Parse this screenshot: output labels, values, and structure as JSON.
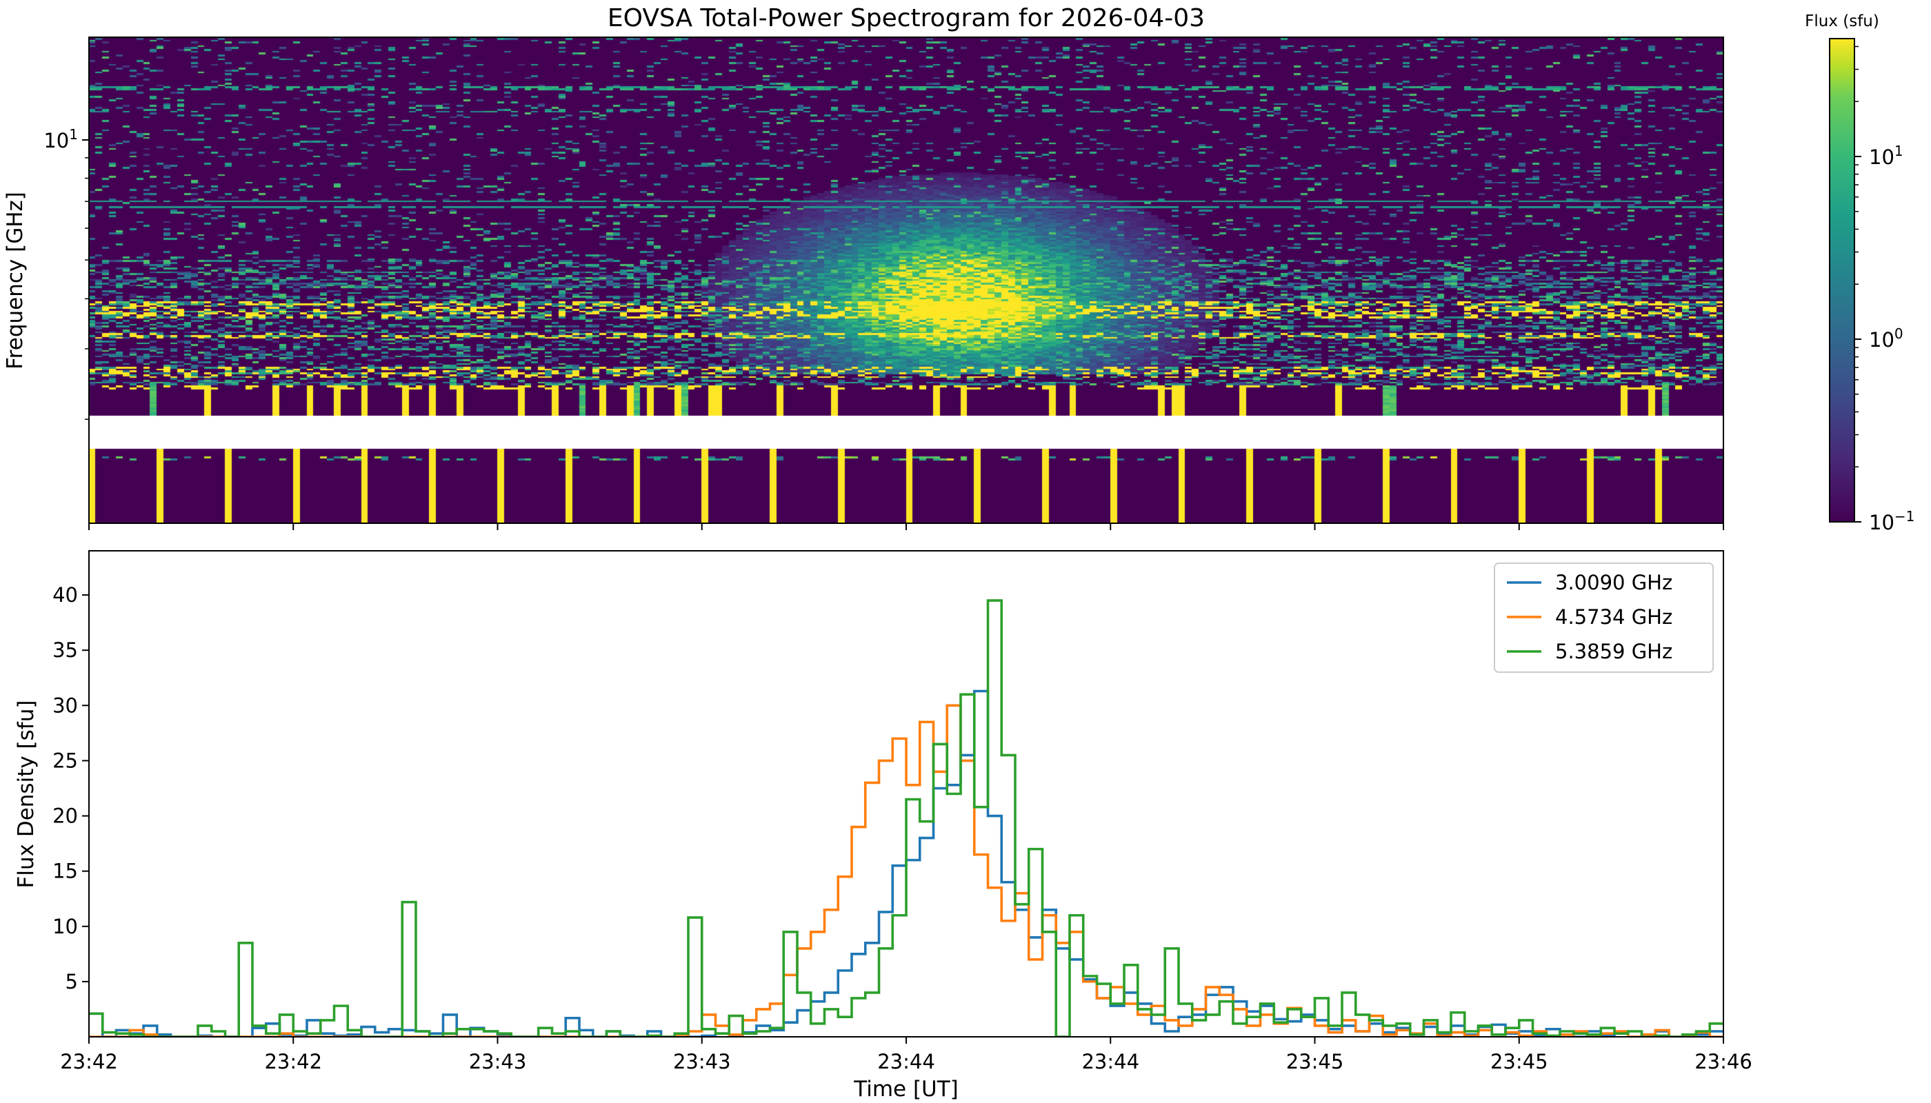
{
  "chart_data": [
    {
      "type": "heatmap",
      "title": "EOVSA Total-Power Spectrogram for 2026-04-03",
      "ylabel": "Frequency [GHz]",
      "yscale": "log",
      "ylim": [
        1.1,
        18
      ],
      "yticks": [
        {
          "base": "10",
          "exp": "1",
          "value": 10
        }
      ],
      "xlim_seconds": [
        0,
        240
      ],
      "missing_band_ghz": [
        1.7,
        2.06
      ],
      "flare_peak_seconds": 128,
      "flare_band_ghz": [
        2.6,
        9.5
      ],
      "colorbar": {
        "label": "Flux (sfu)",
        "scale": "log",
        "range": [
          0.1,
          44
        ],
        "ticks": [
          {
            "base": "10",
            "exp": "1",
            "value": 10
          },
          {
            "base": "10",
            "exp": "0",
            "value": 1
          },
          {
            "base": "10",
            "exp": "−1",
            "value": 0.1
          }
        ],
        "colormap": "viridis"
      }
    },
    {
      "type": "line",
      "style": "step",
      "xlabel": "Time [UT]",
      "ylabel": "Flux Density [sfu]",
      "xlim_seconds": [
        0,
        240
      ],
      "bin_seconds": 2,
      "ylim": [
        0,
        44
      ],
      "yticks": [
        5,
        10,
        15,
        20,
        25,
        30,
        35,
        40
      ],
      "xtick_labels": [
        "23:42",
        "23:42",
        "23:43",
        "23:43",
        "23:44",
        "23:44",
        "23:45",
        "23:45",
        "23:46"
      ],
      "legend": "top-right",
      "series": [
        {
          "name": "3.0090 GHz",
          "color": "#1f77b4",
          "values": [
            2.1,
            0,
            0.6,
            0.3,
            1.0,
            0.2,
            0,
            0,
            0.1,
            0,
            0,
            0,
            0.8,
            1.2,
            0.2,
            0.1,
            1.5,
            0.3,
            0.1,
            0.2,
            0.9,
            0.4,
            0.7,
            0.6,
            0.5,
            0.3,
            2.0,
            0,
            0.8,
            0.5,
            0.1,
            0,
            0,
            0,
            0,
            1.7,
            0.6,
            0,
            0.5,
            0.1,
            0,
            0.5,
            0,
            0.2,
            0,
            0.1,
            0.3,
            0,
            0.4,
            1.0,
            0.6,
            1.3,
            2.4,
            3.2,
            4.0,
            6.0,
            7.5,
            8.5,
            11.3,
            15.5,
            16.0,
            18.0,
            22.5,
            22.8,
            25.5,
            31.3,
            20.0,
            14.0,
            11.5,
            9.0,
            11.5,
            8.0,
            7.0,
            5.2,
            3.5,
            2.8,
            4.0,
            3.0,
            1.2,
            0.5,
            1.8,
            2.0,
            3.8,
            4.5,
            3.2,
            2.3,
            2.8,
            1.6,
            1.4,
            2.0,
            1.5,
            0.7,
            1.0,
            0.5,
            1.2,
            0.4,
            0.8,
            0.2,
            0.9,
            0.3,
            1.0,
            0.2,
            0.9,
            1.1,
            0.3,
            0.5,
            0.1,
            0.7,
            0.2,
            0,
            0.5,
            0.1,
            0.3,
            0,
            0.2,
            0.5,
            0,
            0.1,
            0.2,
            0.5
          ]
        },
        {
          "name": "4.5734 GHz",
          "color": "#ff7f0e",
          "values": [
            0,
            0,
            0,
            0.6,
            0.2,
            0,
            0,
            0,
            0,
            0,
            0,
            0,
            0,
            0,
            0.3,
            0,
            0,
            0,
            0,
            0,
            0,
            0,
            0,
            0,
            0,
            0,
            0,
            0,
            0,
            0,
            0,
            0,
            0,
            0,
            0,
            0,
            0,
            0,
            0,
            0,
            0,
            0,
            0,
            0.2,
            0.5,
            2.0,
            1.0,
            0.2,
            1.5,
            2.5,
            3.0,
            5.6,
            8.0,
            9.5,
            11.5,
            14.5,
            19.0,
            23.0,
            25.0,
            27.0,
            22.8,
            28.5,
            24.0,
            30.0,
            25.0,
            16.5,
            13.5,
            10.5,
            13.0,
            7.0,
            11.0,
            8.5,
            9.5,
            5.0,
            3.5,
            4.5,
            3.0,
            2.0,
            2.8,
            1.5,
            1.0,
            2.5,
            4.5,
            3.8,
            2.5,
            1.0,
            2.0,
            1.2,
            2.6,
            1.8,
            1.0,
            0.4,
            1.5,
            0.5,
            1.9,
            0.2,
            0.6,
            0.3,
            1.2,
            0.1,
            0.4,
            0.1,
            0.6,
            0.2,
            0.4,
            0.1,
            0.5,
            0,
            0.2,
            0.5,
            0.1,
            0.3,
            0.5,
            0,
            0.2,
            0.6,
            0,
            0.1,
            0.4,
            0
          ]
        },
        {
          "name": "5.3859 GHz",
          "color": "#2ca02c",
          "values": [
            2.1,
            0.4,
            0.3,
            0.2,
            0,
            0,
            0,
            0,
            1.0,
            0.5,
            0,
            8.5,
            1.0,
            0.3,
            2.0,
            0.5,
            0.3,
            1.5,
            2.8,
            0.6,
            0,
            0,
            0,
            12.2,
            0.5,
            0,
            0.3,
            0.7,
            0.7,
            0.5,
            0.3,
            0,
            0,
            0.8,
            0.3,
            0.5,
            0,
            0,
            0.5,
            0,
            0,
            0.1,
            0,
            0.3,
            10.8,
            0.7,
            0.3,
            1.9,
            0.3,
            0.5,
            0.8,
            9.5,
            4.0,
            1.2,
            2.5,
            1.8,
            3.5,
            4.0,
            8.0,
            11.0,
            21.5,
            19.5,
            26.5,
            22.0,
            31.0,
            20.8,
            39.5,
            25.5,
            12.0,
            17.0,
            9.5,
            0,
            11.0,
            5.5,
            4.8,
            3.0,
            6.5,
            2.5,
            2.0,
            8.0,
            3.0,
            1.5,
            2.0,
            3.2,
            1.2,
            1.8,
            3.0,
            1.3,
            2.5,
            1.8,
            3.5,
            1.0,
            4.0,
            2.0,
            1.5,
            1.0,
            1.2,
            0.2,
            1.5,
            0.4,
            2.2,
            0.5,
            1.0,
            0.2,
            0.8,
            1.5,
            0.3,
            0.1,
            0.5,
            0.3,
            0.2,
            0.8,
            0.3,
            0.5,
            0,
            0.1,
            0,
            0.2,
            0.5,
            1.2
          ]
        }
      ]
    }
  ]
}
